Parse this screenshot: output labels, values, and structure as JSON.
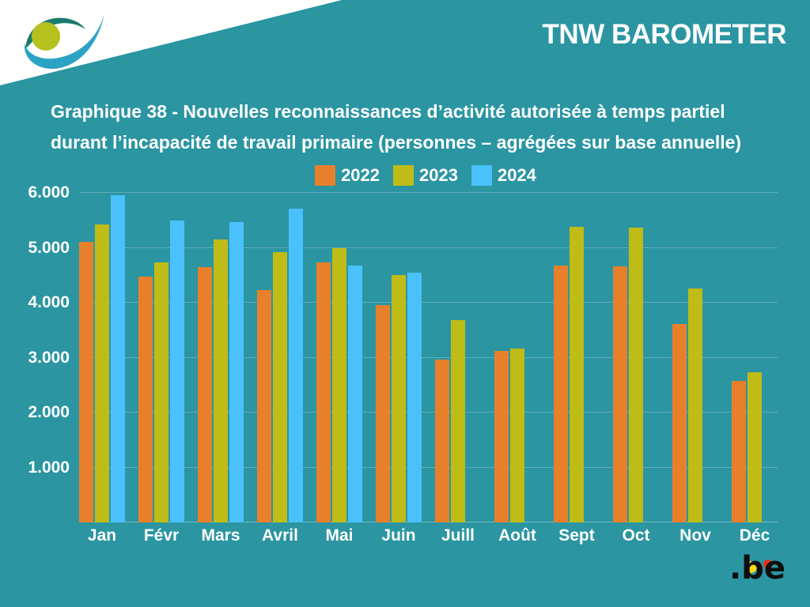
{
  "page": {
    "background": "#2b95a2"
  },
  "header": {
    "brand": "TNW BAROMETER"
  },
  "title": {
    "line1": "Graphique 38 - Nouvelles reconnaissances d’activité autorisée à temps partiel",
    "line2": "durant l’incapacité de travail primaire (personnes – agrégées sur base annuelle)"
  },
  "footer": {
    "be_label": ".be"
  },
  "chart_data": {
    "type": "bar",
    "title": "Graphique 38 - Nouvelles reconnaissances d’activité autorisée à temps partiel durant l’incapacité de travail primaire (personnes – agrégées sur base annuelle)",
    "categories": [
      "Jan",
      "Févr",
      "Mars",
      "Avril",
      "Mai",
      "Juin",
      "Juill",
      "Août",
      "Sept",
      "Oct",
      "Nov",
      "Déc"
    ],
    "series": [
      {
        "name": "2022",
        "color": "#e8802b",
        "values": [
          5110,
          4480,
          4650,
          4230,
          4730,
          3950,
          2960,
          3120,
          4670,
          4660,
          3610,
          2580
        ]
      },
      {
        "name": "2023",
        "color": "#bfbc17",
        "values": [
          5420,
          4730,
          5150,
          4920,
          5000,
          4500,
          3680,
          3170,
          5380,
          5360,
          4260,
          2740
        ]
      },
      {
        "name": "2024",
        "color": "#4ac1fb",
        "values": [
          5950,
          5500,
          5470,
          5710,
          4670,
          4550,
          null,
          null,
          null,
          null,
          null,
          null
        ]
      }
    ],
    "xlabel": "",
    "ylabel": "",
    "ylim": [
      0,
      6000
    ],
    "y_ticks": [
      {
        "label": "6.000",
        "value": 6000
      },
      {
        "label": "5.000",
        "value": 5000
      },
      {
        "label": "4.000",
        "value": 4000
      },
      {
        "label": "3.000",
        "value": 3000
      },
      {
        "label": "2.000",
        "value": 2000
      },
      {
        "label": "1.000",
        "value": 1000
      }
    ],
    "grid": true,
    "legend_position": "top-center"
  }
}
